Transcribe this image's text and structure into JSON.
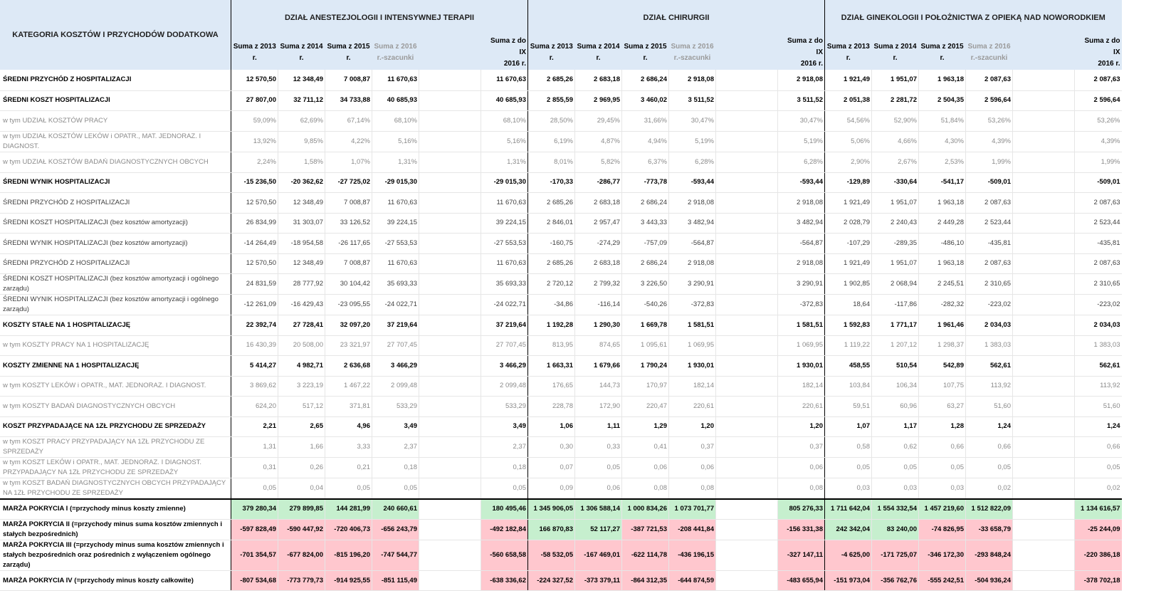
{
  "header": {
    "category_label": "KATEGORIA KOSZTÓW I PRZYCHODÓW DODATKOWA",
    "departments": [
      "DZIAŁ ANESTEZJOLOGII I INTENSYWNEJ TERAPII",
      "DZIAŁ CHIRURGII",
      "DZIAŁ GINEKOLOGII I POŁOŻNICTWA Z OPIEKĄ NAD NOWORODKIEM"
    ],
    "sub": [
      {
        "l1": "Suma z 2013",
        "l2": "r."
      },
      {
        "l1": "Suma z 2014",
        "l2": "r."
      },
      {
        "l1": "Suma z 2015",
        "l2": "r."
      },
      {
        "l1": "Suma z 2016",
        "l2": "r.-szacunki"
      },
      {
        "l1": "Suma z do IX",
        "l2": "2016 r."
      }
    ]
  },
  "rows": [
    {
      "label": "ŚREDNI PRZYCHÓD Z HOSPITALIZACJI",
      "style": "bold",
      "sep": "",
      "vals": [
        "12 570,50",
        "12 348,49",
        "7 008,87",
        "11 670,63",
        "11 670,63",
        "2 685,26",
        "2 683,18",
        "2 686,24",
        "2 918,08",
        "2 918,08",
        "1 921,49",
        "1 951,07",
        "1 963,18",
        "2 087,63",
        "2 087,63"
      ]
    },
    {
      "label": "ŚREDNI KOSZT HOSPITALIZACJI",
      "style": "bold",
      "sep": "",
      "vals": [
        "27 807,00",
        "32 711,12",
        "34 733,88",
        "40 685,93",
        "40 685,93",
        "2 855,59",
        "2 969,95",
        "3 460,02",
        "3 511,52",
        "3 511,52",
        "2 051,38",
        "2 281,72",
        "2 504,35",
        "2 596,64",
        "2 596,64"
      ]
    },
    {
      "label": "w tym UDZIAŁ KOSZTÓW PRACY",
      "style": "grey",
      "sep": "",
      "vals": [
        "59,09%",
        "62,69%",
        "67,14%",
        "68,10%",
        "68,10%",
        "28,50%",
        "29,45%",
        "31,66%",
        "30,47%",
        "30,47%",
        "54,56%",
        "52,90%",
        "51,84%",
        "53,26%",
        "53,26%"
      ]
    },
    {
      "label": "w tym UDZIAŁ KOSZTÓW LEKÓW i OPATR., MAT. JEDNORAZ. I DIAGNOST.",
      "style": "grey",
      "sep": "",
      "vals": [
        "13,92%",
        "9,85%",
        "4,22%",
        "5,16%",
        "5,16%",
        "6,19%",
        "4,87%",
        "4,94%",
        "5,19%",
        "5,19%",
        "5,06%",
        "4,66%",
        "4,30%",
        "4,39%",
        "4,39%"
      ]
    },
    {
      "label": "w tym UDZIAŁ KOSZTÓW BADAŃ DIAGNOSTYCZNYCH OBCYCH",
      "style": "grey",
      "sep": "",
      "vals": [
        "2,24%",
        "1,58%",
        "1,07%",
        "1,31%",
        "1,31%",
        "8,01%",
        "5,82%",
        "6,37%",
        "6,28%",
        "6,28%",
        "2,90%",
        "2,67%",
        "2,53%",
        "1,99%",
        "1,99%"
      ]
    },
    {
      "label": "ŚREDNI WYNIK HOSPITALIZACJI",
      "style": "bold",
      "sep": "",
      "vals": [
        "-15 236,50",
        "-20 362,62",
        "-27 725,02",
        "-29 015,30",
        "-29 015,30",
        "-170,33",
        "-286,77",
        "-773,78",
        "-593,44",
        "-593,44",
        "-129,89",
        "-330,64",
        "-541,17",
        "-509,01",
        "-509,01"
      ]
    },
    {
      "label": "ŚREDNI PRZYCHÓD Z HOSPITALIZACJI",
      "style": "grey dark",
      "sep": "hl",
      "vals": [
        "12 570,50",
        "12 348,49",
        "7 008,87",
        "11 670,63",
        "11 670,63",
        "2 685,26",
        "2 683,18",
        "2 686,24",
        "2 918,08",
        "2 918,08",
        "1 921,49",
        "1 951,07",
        "1 963,18",
        "2 087,63",
        "2 087,63"
      ]
    },
    {
      "label": "ŚREDNI KOSZT HOSPITALIZACJI (bez kosztów amortyzacji)",
      "style": "grey dark",
      "sep": "",
      "vals": [
        "26 834,99",
        "31 303,07",
        "33 126,52",
        "39 224,15",
        "39 224,15",
        "2 846,01",
        "2 957,47",
        "3 443,33",
        "3 482,94",
        "3 482,94",
        "2 028,79",
        "2 240,43",
        "2 449,28",
        "2 523,44",
        "2 523,44"
      ]
    },
    {
      "label": "ŚREDNI WYNIK HOSPITALIZACJI (bez kosztów amortyzacji)",
      "style": "grey dark",
      "sep": "",
      "vals": [
        "-14 264,49",
        "-18 954,58",
        "-26 117,65",
        "-27 553,53",
        "-27 553,53",
        "-160,75",
        "-274,29",
        "-757,09",
        "-564,87",
        "-564,87",
        "-107,29",
        "-289,35",
        "-486,10",
        "-435,81",
        "-435,81"
      ]
    },
    {
      "label": "ŚREDNI PRZYCHÓD Z HOSPITALIZACJI",
      "style": "grey dark",
      "sep": "hl",
      "vals": [
        "12 570,50",
        "12 348,49",
        "7 008,87",
        "11 670,63",
        "11 670,63",
        "2 685,26",
        "2 683,18",
        "2 686,24",
        "2 918,08",
        "2 918,08",
        "1 921,49",
        "1 951,07",
        "1 963,18",
        "2 087,63",
        "2 087,63"
      ]
    },
    {
      "label": "ŚREDNI KOSZT HOSPITALIZACJI (bez kosztów amortyzacji i ogólnego zarządu)",
      "style": "grey dark",
      "sep": "",
      "vals": [
        "24 831,59",
        "28 777,92",
        "30 104,42",
        "35 693,33",
        "35 693,33",
        "2 720,12",
        "2 799,32",
        "3 226,50",
        "3 290,91",
        "3 290,91",
        "1 902,85",
        "2 068,94",
        "2 245,51",
        "2 310,65",
        "2 310,65"
      ]
    },
    {
      "label": "ŚREDNI WYNIK HOSPITALIZACJI (bez kosztów amortyzacji i ogólnego zarządu)",
      "style": "grey dark",
      "sep": "",
      "vals": [
        "-12 261,09",
        "-16 429,43",
        "-23 095,55",
        "-24 022,71",
        "-24 022,71",
        "-34,86",
        "-116,14",
        "-540,26",
        "-372,83",
        "-372,83",
        "18,64",
        "-117,86",
        "-282,32",
        "-223,02",
        "-223,02"
      ]
    },
    {
      "label": "KOSZTY STAŁE NA 1 HOSPITALIZACJĘ",
      "style": "bold",
      "sep": "hl",
      "vals": [
        "22 392,74",
        "27 728,41",
        "32 097,20",
        "37 219,64",
        "37 219,64",
        "1 192,28",
        "1 290,30",
        "1 669,78",
        "1 581,51",
        "1 581,51",
        "1 592,83",
        "1 771,17",
        "1 961,46",
        "2 034,03",
        "2 034,03"
      ]
    },
    {
      "label": "w tym KOSZTY PRACY NA 1 HOSPITALIZACJĘ",
      "style": "grey",
      "sep": "",
      "vals": [
        "16 430,39",
        "20 508,00",
        "23 321,97",
        "27 707,45",
        "27 707,45",
        "813,95",
        "874,65",
        "1 095,61",
        "1 069,95",
        "1 069,95",
        "1 119,22",
        "1 207,12",
        "1 298,37",
        "1 383,03",
        "1 383,03"
      ]
    },
    {
      "label": "KOSZTY ZMIENNE NA 1 HOSPITALIZACJĘ",
      "style": "bold",
      "sep": "hl",
      "vals": [
        "5 414,27",
        "4 982,71",
        "2 636,68",
        "3 466,29",
        "3 466,29",
        "1 663,31",
        "1 679,66",
        "1 790,24",
        "1 930,01",
        "1 930,01",
        "458,55",
        "510,54",
        "542,89",
        "562,61",
        "562,61"
      ]
    },
    {
      "label": "w tym KOSZTY LEKÓW i OPATR., MAT. JEDNORAZ. I DIAGNOST.",
      "style": "grey",
      "sep": "",
      "vals": [
        "3 869,62",
        "3 223,19",
        "1 467,22",
        "2 099,48",
        "2 099,48",
        "176,65",
        "144,73",
        "170,97",
        "182,14",
        "182,14",
        "103,84",
        "106,34",
        "107,75",
        "113,92",
        "113,92"
      ]
    },
    {
      "label": "w tym KOSZTY BADAŃ DIAGNOSTYCZNYCH OBCYCH",
      "style": "grey",
      "sep": "",
      "vals": [
        "624,20",
        "517,12",
        "371,81",
        "533,29",
        "533,29",
        "228,78",
        "172,90",
        "220,47",
        "220,61",
        "220,61",
        "59,51",
        "60,96",
        "63,27",
        "51,60",
        "51,60"
      ]
    },
    {
      "label": "KOSZT PRZYPADAJĄCE NA 1ZŁ PRZYCHODU ZE SPRZEDAŻY",
      "style": "bold",
      "sep": "hl",
      "vals": [
        "2,21",
        "2,65",
        "4,96",
        "3,49",
        "3,49",
        "1,06",
        "1,11",
        "1,29",
        "1,20",
        "1,20",
        "1,07",
        "1,17",
        "1,28",
        "1,24",
        "1,24"
      ]
    },
    {
      "label": "w tym KOSZT PRACY PRZYPADAJĄCY NA 1ZŁ PRZYCHODU ZE SPRZEDAŻY",
      "style": "grey",
      "sep": "",
      "vals": [
        "1,31",
        "1,66",
        "3,33",
        "2,37",
        "2,37",
        "0,30",
        "0,33",
        "0,41",
        "0,37",
        "0,37",
        "0,58",
        "0,62",
        "0,66",
        "0,66",
        "0,66"
      ]
    },
    {
      "label": "w tym KOSZT LEKÓW i OPATR., MAT. JEDNORAZ. I DIAGNOST. PRZYPADAJĄCY NA 1ZŁ PRZYCHODU ZE SPRZEDAŻY",
      "style": "grey",
      "sep": "",
      "vals": [
        "0,31",
        "0,26",
        "0,21",
        "0,18",
        "0,18",
        "0,07",
        "0,05",
        "0,06",
        "0,06",
        "0,06",
        "0,05",
        "0,05",
        "0,05",
        "0,05",
        "0,05"
      ]
    },
    {
      "label": "w tym KOSZT BADAŃ DIAGNOSTYCZNYCH OBCYCH PRZYPADAJĄCY NA 1ZŁ PRZYCHODU ZE SPRZEDAŻY",
      "style": "grey",
      "sep": "",
      "vals": [
        "0,05",
        "0,04",
        "0,05",
        "0,05",
        "0,05",
        "0,09",
        "0,06",
        "0,08",
        "0,08",
        "0,08",
        "0,03",
        "0,03",
        "0,03",
        "0,02",
        "0,02"
      ]
    },
    {
      "label": "MARŻA POKRYCIA I (=przychody minus koszty zmienne)",
      "style": "marza",
      "sep": "hlt",
      "vals": [
        "379 280,34",
        "279 899,85",
        "144 281,99",
        "240 660,61",
        "180 495,46",
        "1 345 906,05",
        "1 306 588,14",
        "1 000 834,26",
        "1 073 701,77",
        "805 276,33",
        "1 711 642,04",
        "1 554 332,54",
        "1 457 219,60",
        "1 512 822,09",
        "1 134 616,57"
      ],
      "colors": [
        "g",
        "g",
        "g",
        "g",
        "g",
        "g",
        "g",
        "g",
        "g",
        "g",
        "g",
        "g",
        "g",
        "g",
        "g"
      ]
    },
    {
      "label": "MARŻA POKRYCIA II (=przychody minus suma kosztów zmiennych i stałych bezpośrednich)",
      "style": "marza",
      "sep": "",
      "vals": [
        "-597 828,49",
        "-590 447,92",
        "-720 406,73",
        "-656 243,79",
        "-492 182,84",
        "166 870,83",
        "52 117,27",
        "-387 721,53",
        "-208 441,84",
        "-156 331,38",
        "242 342,04",
        "83 240,00",
        "-74 826,95",
        "-33 658,79",
        "-25 244,09"
      ],
      "colors": [
        "r",
        "r",
        "r",
        "r",
        "r",
        "g",
        "g",
        "r",
        "r",
        "r",
        "g",
        "g",
        "r",
        "r",
        "r"
      ]
    },
    {
      "label": "MARŻA POKRYCIA III (=przychody minus suma kosztów zmiennych i stałych bezpośrednich oraz pośrednich z wyłączeniem ogólnego zarządu)",
      "style": "marza",
      "sep": "",
      "vals": [
        "-701 354,57",
        "-677 824,00",
        "-815 196,20",
        "-747 544,77",
        "-560 658,58",
        "-58 532,05",
        "-167 469,01",
        "-622 114,78",
        "-436 196,15",
        "-327 147,11",
        "-4 625,00",
        "-171 725,07",
        "-346 172,30",
        "-293 848,24",
        "-220 386,18"
      ],
      "colors": [
        "r",
        "r",
        "r",
        "r",
        "r",
        "r",
        "r",
        "r",
        "r",
        "r",
        "r",
        "r",
        "r",
        "r",
        "r"
      ]
    },
    {
      "label": "MARŻA POKRYCIA IV (=przychody minus koszty całkowite)",
      "style": "marza",
      "sep": "",
      "vals": [
        "-807 534,68",
        "-773 779,73",
        "-914 925,55",
        "-851 115,49",
        "-638 336,62",
        "-224 327,52",
        "-373 379,11",
        "-864 312,35",
        "-644 874,59",
        "-483 655,94",
        "-151 973,04",
        "-356 762,76",
        "-555 242,51",
        "-504 936,24",
        "-378 702,18"
      ],
      "colors": [
        "r",
        "r",
        "r",
        "r",
        "r",
        "r",
        "r",
        "r",
        "r",
        "r",
        "r",
        "r",
        "r",
        "r",
        "r"
      ]
    }
  ]
}
